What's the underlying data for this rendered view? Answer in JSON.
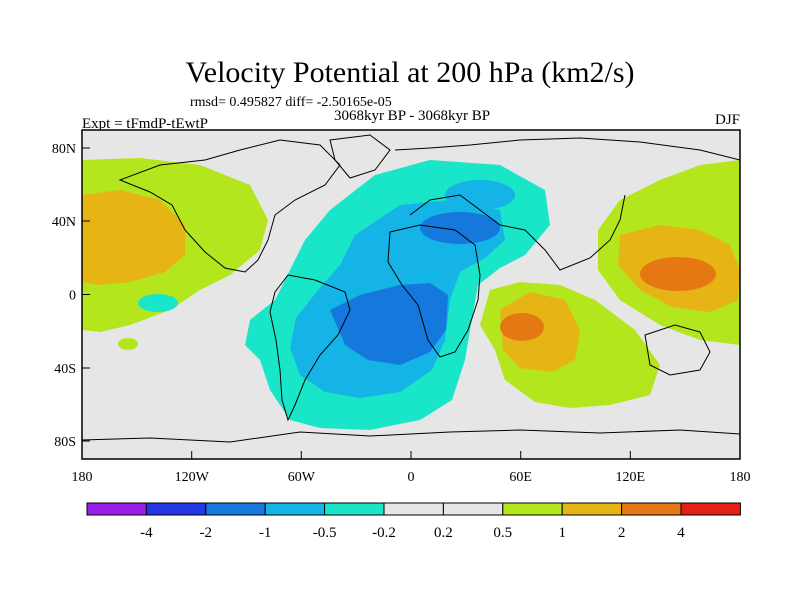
{
  "header": {
    "title": "Velocity Potential at 200 hPa (km2/s)",
    "stats": "rmsd= 0.495827 diff= -2.50165e-05",
    "period": "3068kyr BP - 3068kyr BP",
    "experiment": "Expt = tFmdP-tEwtP",
    "season": "DJF"
  },
  "axes": {
    "lon_labels": [
      "180",
      "120W",
      "60W",
      "0",
      "60E",
      "120E",
      "180"
    ],
    "lat_labels": [
      "80N",
      "40N",
      "0",
      "40S",
      "80S"
    ]
  },
  "legend": {
    "labels": [
      "-4",
      "-2",
      "-1",
      "-0.5",
      "-0.2",
      "0.2",
      "0.5",
      "1",
      "2",
      "4"
    ],
    "colors": [
      "#9a1ee6",
      "#2437e6",
      "#1478dc",
      "#14b4e6",
      "#19e6c8",
      "#e6e6e6",
      "#b4e61e",
      "#e6b414",
      "#e67814",
      "#e61e14"
    ]
  },
  "map": {
    "ocean_color": "#e6e6e6",
    "field": "velocity potential anomaly",
    "regions": [
      {
        "name": "north-pacific-positive",
        "level": "0.2 to 0.5"
      },
      {
        "name": "north-pacific-core",
        "level": "0.5 to 1"
      },
      {
        "name": "atlantic-africa-negative",
        "level": "-0.5 to -1"
      },
      {
        "name": "south-atlantic-core",
        "level": "-1 to -2"
      },
      {
        "name": "indian-ocean-positive",
        "level": "0.5 to 1"
      },
      {
        "name": "west-pacific-positive",
        "level": "0.5 to 2"
      }
    ]
  }
}
